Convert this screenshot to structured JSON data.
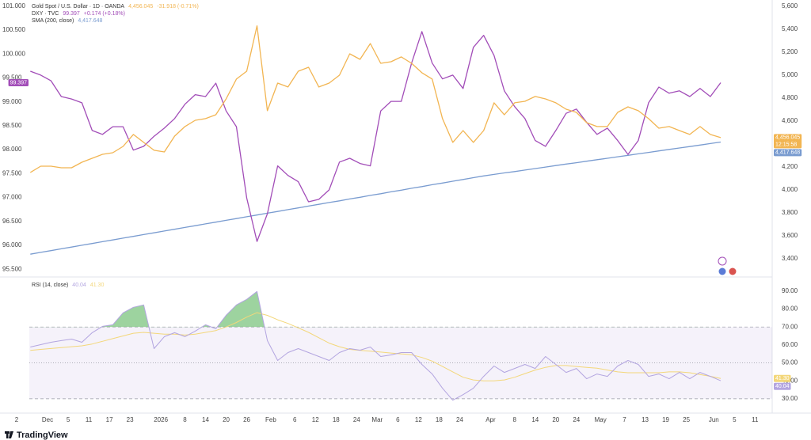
{
  "chart_data": [
    {
      "type": "line",
      "x": [
        -5,
        -2,
        1,
        4,
        7,
        10,
        13,
        16,
        19,
        22,
        25,
        28,
        31,
        34,
        37,
        40,
        43,
        46,
        49,
        52,
        55,
        58,
        61,
        64,
        67,
        70,
        73,
        76,
        79,
        82,
        85,
        88,
        91,
        94,
        97,
        100,
        103,
        106,
        109,
        112,
        115,
        118,
        121,
        124,
        127,
        130,
        133,
        136,
        139,
        142,
        145,
        148,
        151,
        154,
        157,
        160,
        163,
        166,
        169,
        172,
        175,
        178,
        181,
        184,
        187,
        190,
        193,
        196
      ],
      "xlim": [
        -9,
        211
      ],
      "xticks": [
        {
          "value": -9,
          "label": "2"
        },
        {
          "value": 0,
          "label": "Dec"
        },
        {
          "value": 6,
          "label": "5"
        },
        {
          "value": 12,
          "label": "11"
        },
        {
          "value": 18,
          "label": "17"
        },
        {
          "value": 24,
          "label": "23"
        },
        {
          "value": 33,
          "label": "2026"
        },
        {
          "value": 40,
          "label": "8"
        },
        {
          "value": 46,
          "label": "14"
        },
        {
          "value": 52,
          "label": "20"
        },
        {
          "value": 58,
          "label": "26"
        },
        {
          "value": 65,
          "label": "Feb"
        },
        {
          "value": 72,
          "label": "6"
        },
        {
          "value": 78,
          "label": "12"
        },
        {
          "value": 84,
          "label": "18"
        },
        {
          "value": 90,
          "label": "24"
        },
        {
          "value": 96,
          "label": "Mar"
        },
        {
          "value": 102,
          "label": "6"
        },
        {
          "value": 108,
          "label": "12"
        },
        {
          "value": 114,
          "label": "18"
        },
        {
          "value": 120,
          "label": "24"
        },
        {
          "value": 129,
          "label": "Apr"
        },
        {
          "value": 136,
          "label": "8"
        },
        {
          "value": 142,
          "label": "14"
        },
        {
          "value": 148,
          "label": "20"
        },
        {
          "value": 154,
          "label": "24"
        },
        {
          "value": 161,
          "label": "May"
        },
        {
          "value": 168,
          "label": "7"
        },
        {
          "value": 174,
          "label": "13"
        },
        {
          "value": 180,
          "label": "19"
        },
        {
          "value": 186,
          "label": "25"
        },
        {
          "value": 194,
          "label": "Jun"
        },
        {
          "value": 200,
          "label": "5"
        },
        {
          "value": 206,
          "label": "11"
        }
      ],
      "ylim": [
        95.37,
        101.13
      ],
      "yticks": [
        {
          "value": 95.5,
          "label": "95.500"
        },
        {
          "value": 96,
          "label": "96.000"
        },
        {
          "value": 96.5,
          "label": "96.500"
        },
        {
          "value": 97,
          "label": "97.000"
        },
        {
          "value": 97.5,
          "label": "97.500"
        },
        {
          "value": 98,
          "label": "98.000"
        },
        {
          "value": 98.5,
          "label": "98.500"
        },
        {
          "value": 99,
          "label": "99.000"
        },
        {
          "value": 99.5,
          "label": "99.500"
        },
        {
          "value": 100,
          "label": "100.000"
        },
        {
          "value": 100.5,
          "label": "100.500"
        },
        {
          "value": 101,
          "label": "101.000"
        }
      ],
      "y2lim": [
        3255,
        5655
      ],
      "y2ticks": [
        {
          "value": 3400,
          "label": "3,400"
        },
        {
          "value": 3600,
          "label": "3,600"
        },
        {
          "value": 3800,
          "label": "3,800"
        },
        {
          "value": 4000,
          "label": "4,000"
        },
        {
          "value": 4200,
          "label": "4,200"
        },
        {
          "value": 4400,
          "label": "4,400"
        },
        {
          "value": 4600,
          "label": "4,600"
        },
        {
          "value": 4800,
          "label": "4,800"
        },
        {
          "value": 5000,
          "label": "5,000"
        },
        {
          "value": 5200,
          "label": "5,200"
        },
        {
          "value": 5400,
          "label": "5,400"
        },
        {
          "value": 5600,
          "label": "5,600"
        }
      ],
      "countdown": "12:15:58",
      "series": [
        {
          "name": "Gold Spot / U.S. Dollar · 1D · OANDA",
          "color": "#f2b552",
          "axis": "y2",
          "legend_value": "4,456.045",
          "legend_change": "-31.918 (-0.71%)",
          "values": [
            4152,
            4207,
            4207,
            4193,
            4193,
            4241,
            4276,
            4310,
            4324,
            4379,
            4483,
            4414,
            4345,
            4331,
            4469,
            4552,
            4607,
            4621,
            4655,
            4793,
            4966,
            5034,
            5430,
            4690,
            4931,
            4897,
            5034,
            5069,
            4897,
            4931,
            5000,
            5186,
            5138,
            5276,
            5103,
            5117,
            5159,
            5103,
            5021,
            4966,
            4621,
            4414,
            4517,
            4414,
            4517,
            4759,
            4655,
            4759,
            4772,
            4814,
            4793,
            4759,
            4703,
            4676,
            4586,
            4552,
            4552,
            4676,
            4724,
            4690,
            4621,
            4538,
            4552,
            4517,
            4483,
            4552,
            4483,
            4456
          ]
        },
        {
          "name": "DXY · TVC",
          "color": "#a24db8",
          "axis": "y",
          "legend_value": "99.397",
          "legend_change": "+0.174 (+0.18%)",
          "values": [
            99.64,
            99.56,
            99.44,
            99.11,
            99.06,
            98.98,
            98.4,
            98.32,
            98.48,
            98.48,
            97.99,
            98.07,
            98.28,
            98.45,
            98.65,
            98.95,
            99.15,
            99.11,
            99.39,
            98.81,
            98.48,
            96.99,
            96.08,
            96.66,
            97.66,
            97.46,
            97.33,
            96.91,
            96.96,
            97.16,
            97.74,
            97.82,
            97.71,
            97.66,
            98.81,
            99.01,
            99.01,
            99.81,
            100.47,
            99.81,
            99.48,
            99.56,
            99.28,
            100.14,
            100.39,
            99.97,
            99.23,
            98.9,
            98.65,
            98.19,
            98.07,
            98.4,
            98.76,
            98.85,
            98.57,
            98.32,
            98.45,
            98.19,
            97.9,
            98.19,
            98.98,
            99.31,
            99.18,
            99.23,
            99.11,
            99.28,
            99.11,
            99.4
          ]
        },
        {
          "name": "SMA (200, close)",
          "color": "#7a9cd0",
          "axis": "y2",
          "legend_value": "4,417.648",
          "values": [
            3440,
            3456,
            3471,
            3487,
            3502,
            3518,
            3533,
            3549,
            3564,
            3580,
            3595,
            3611,
            3626,
            3642,
            3657,
            3673,
            3688,
            3704,
            3719,
            3735,
            3750,
            3766,
            3781,
            3797,
            3812,
            3828,
            3843,
            3859,
            3874,
            3890,
            3905,
            3921,
            3936,
            3952,
            3967,
            3983,
            3998,
            4014,
            4029,
            4045,
            4060,
            4076,
            4091,
            4107,
            4122,
            4135,
            4148,
            4160,
            4173,
            4186,
            4199,
            4212,
            4225,
            4237,
            4250,
            4263,
            4276,
            4289,
            4301,
            4314,
            4327,
            4340,
            4353,
            4365,
            4378,
            4391,
            4404,
            4417
          ]
        }
      ]
    },
    {
      "type": "line",
      "title": "RSI (14, close)",
      "ylim": [
        22,
        97
      ],
      "yticks": [
        {
          "value": 30,
          "label": "30.00"
        },
        {
          "value": 40,
          "label": "40.00"
        },
        {
          "value": 50,
          "label": "50.00"
        },
        {
          "value": 60,
          "label": "60.00"
        },
        {
          "value": 70,
          "label": "70.00"
        },
        {
          "value": 80,
          "label": "80.00"
        },
        {
          "value": 90,
          "label": "90.00"
        }
      ],
      "bands": {
        "upper": 70,
        "middle": 50,
        "lower": 30
      },
      "series": [
        {
          "color": "#b3a5e0",
          "legend_value": "40.04",
          "values": [
            58.85,
            60.18,
            61.5,
            62.39,
            63.27,
            61.5,
            66.81,
            70.35,
            71.24,
            77.88,
            80.97,
            82.3,
            57.96,
            64.6,
            66.81,
            64.6,
            67.7,
            71.24,
            69.03,
            76.55,
            82.3,
            85.4,
            89.82,
            62.39,
            51.33,
            55.75,
            57.96,
            55.75,
            53.54,
            51.33,
            55.75,
            57.96,
            57.08,
            58.85,
            53.54,
            54.42,
            55.75,
            55.75,
            49.12,
            43.81,
            35.84,
            29.2,
            32.3,
            35.84,
            42.48,
            48.23,
            44.69,
            46.9,
            49.12,
            46.9,
            53.54,
            49.12,
            44.69,
            46.9,
            41.15,
            43.81,
            42.48,
            48.23,
            51.33,
            49.12,
            42.48,
            43.81,
            41.15,
            44.69,
            41.15,
            44.69,
            42.48,
            40.04
          ]
        },
        {
          "color": "#f3d77a",
          "legend_value": "41.30",
          "values": [
            57.0,
            57.5,
            58.0,
            58.5,
            59.0,
            59.5,
            60.5,
            62.0,
            63.5,
            65.0,
            66.5,
            67.0,
            66.5,
            66.0,
            66.0,
            65.5,
            66.0,
            67.0,
            68.0,
            70.0,
            72.5,
            75.5,
            78.0,
            76.5,
            74.0,
            72.0,
            69.5,
            67.0,
            64.0,
            61.0,
            59.0,
            57.5,
            57.0,
            56.5,
            56.0,
            55.5,
            55.0,
            54.5,
            53.0,
            51.0,
            48.0,
            45.0,
            42.0,
            40.5,
            40.0,
            40.0,
            40.5,
            42.0,
            44.0,
            46.0,
            47.5,
            48.5,
            48.5,
            48.0,
            47.5,
            47.0,
            46.0,
            45.0,
            44.5,
            44.5,
            44.5,
            44.5,
            45.0,
            45.0,
            44.5,
            43.5,
            42.5,
            41.3
          ]
        }
      ]
    }
  ],
  "branding": "TradingView"
}
